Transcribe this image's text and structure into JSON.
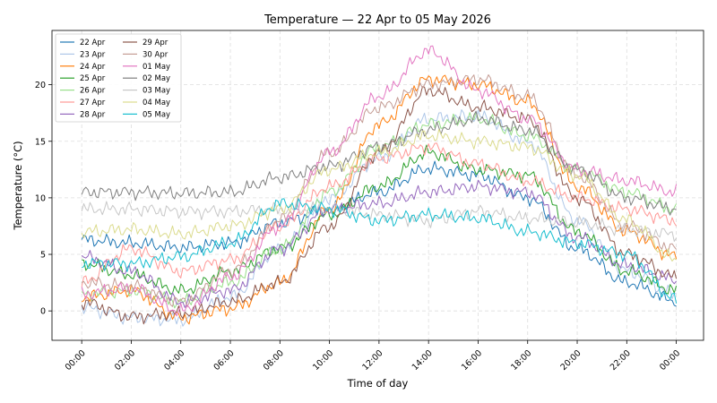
{
  "chart_data": {
    "type": "line",
    "title": "Temperature — 22 Apr to 05 May 2026",
    "xlabel": "Time of day",
    "ylabel": "Temperature (°C)",
    "x_unit": "hour of day",
    "xlim": [
      -1.2,
      25.1
    ],
    "ylim": [
      -2.6,
      24.8
    ],
    "x_ticks": [
      0,
      2,
      4,
      6,
      8,
      10,
      12,
      14,
      16,
      18,
      20,
      22,
      24
    ],
    "x_tick_labels": [
      "00:00",
      "02:00",
      "04:00",
      "06:00",
      "08:00",
      "10:00",
      "12:00",
      "14:00",
      "16:00",
      "18:00",
      "20:00",
      "22:00",
      "00:00"
    ],
    "y_ticks": [
      0,
      5,
      10,
      15,
      20
    ],
    "y_tick_labels": [
      "0",
      "5",
      "10",
      "15",
      "20"
    ],
    "grid": true,
    "legend_position": "top-left",
    "legend_columns": 2,
    "x": [
      0,
      2,
      4,
      6,
      8,
      10,
      12,
      14,
      16,
      18,
      20,
      22,
      24
    ],
    "series": [
      {
        "name": "22 Apr",
        "color": "#1f77b4",
        "values": [
          6.3,
          6.0,
          5.6,
          6.0,
          7.8,
          9.0,
          10.5,
          12.6,
          12.0,
          10.0,
          5.5,
          2.5,
          0.9
        ]
      },
      {
        "name": "23 Apr",
        "color": "#aec7e8",
        "values": [
          0.3,
          -0.6,
          -0.8,
          1.2,
          5.5,
          10.0,
          13.5,
          17.0,
          17.2,
          15.0,
          8.0,
          3.5,
          1.5
        ]
      },
      {
        "name": "24 Apr",
        "color": "#ff7f0e",
        "values": [
          1.2,
          1.8,
          -0.6,
          0.2,
          2.5,
          9.0,
          16.5,
          20.5,
          20.0,
          18.5,
          11.0,
          7.0,
          4.8
        ]
      },
      {
        "name": "25 Apr",
        "color": "#2ca02c",
        "values": [
          4.2,
          3.2,
          1.8,
          3.5,
          5.5,
          8.5,
          11.0,
          14.0,
          12.5,
          12.0,
          7.0,
          3.5,
          1.8
        ]
      },
      {
        "name": "26 Apr",
        "color": "#98df8a",
        "values": [
          1.5,
          1.8,
          0.8,
          2.5,
          5.5,
          10.5,
          14.5,
          16.5,
          17.0,
          15.5,
          12.5,
          10.5,
          9.0
        ]
      },
      {
        "name": "27 Apr",
        "color": "#ff9896",
        "values": [
          2.5,
          5.5,
          3.5,
          4.5,
          7.5,
          11.0,
          13.5,
          14.5,
          13.0,
          11.5,
          10.0,
          9.0,
          8.0
        ]
      },
      {
        "name": "28 Apr",
        "color": "#9467bd",
        "values": [
          4.8,
          3.5,
          0.8,
          1.8,
          5.5,
          9.0,
          9.5,
          10.5,
          11.0,
          10.5,
          6.5,
          4.0,
          2.8
        ]
      },
      {
        "name": "29 Apr",
        "color": "#8c564b",
        "values": [
          0.8,
          -0.5,
          -0.2,
          0.8,
          2.5,
          7.5,
          14.0,
          19.5,
          18.0,
          17.0,
          10.0,
          5.0,
          3.0
        ]
      },
      {
        "name": "30 Apr",
        "color": "#c49c94",
        "values": [
          2.5,
          2.2,
          0.8,
          3.5,
          8.0,
          14.0,
          18.0,
          20.0,
          20.5,
          19.0,
          12.0,
          7.5,
          5.5
        ]
      },
      {
        "name": "01 May",
        "color": "#e377c2",
        "values": [
          1.5,
          2.0,
          0.0,
          3.0,
          7.5,
          14.0,
          19.0,
          23.0,
          19.5,
          17.0,
          12.5,
          11.5,
          10.5
        ]
      },
      {
        "name": "02 May",
        "color": "#7f7f7f",
        "values": [
          10.5,
          10.5,
          10.4,
          10.5,
          11.8,
          12.8,
          14.5,
          16.0,
          17.0,
          16.0,
          12.5,
          10.0,
          9.0
        ]
      },
      {
        "name": "03 May",
        "color": "#c7c7c7",
        "values": [
          9.0,
          9.0,
          8.8,
          8.8,
          9.0,
          9.0,
          8.5,
          8.0,
          8.8,
          8.2,
          7.8,
          7.2,
          6.8
        ]
      },
      {
        "name": "04 May",
        "color": "#dbdb8d",
        "values": [
          7.0,
          7.2,
          6.8,
          7.5,
          9.0,
          12.5,
          14.0,
          15.5,
          15.0,
          14.5,
          12.0,
          8.0,
          4.5
        ]
      },
      {
        "name": "05 May",
        "color": "#17becf",
        "values": [
          4.2,
          4.2,
          4.8,
          6.0,
          9.5,
          9.0,
          8.0,
          8.5,
          8.2,
          7.0,
          6.0,
          5.0,
          1.0
        ]
      }
    ]
  }
}
